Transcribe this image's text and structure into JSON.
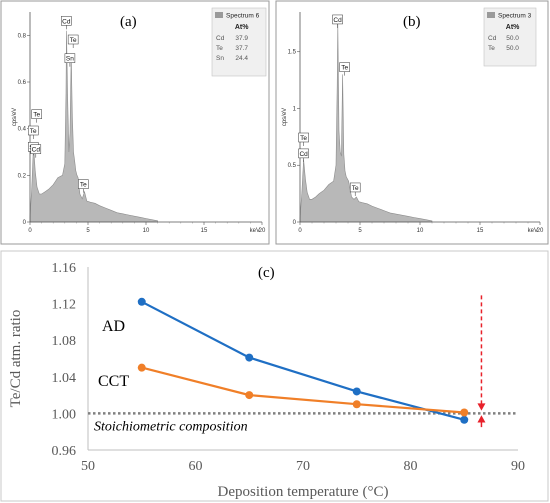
{
  "chart_data": [
    {
      "panel": "(a)",
      "type": "area",
      "ylabel": "cps/eV",
      "xlabel": "keV",
      "x_ticks": [
        "0",
        "5",
        "10",
        "15",
        "20"
      ],
      "y_ticks": [
        "0",
        "0.2",
        "0.4",
        "0.6",
        "0.8"
      ],
      "xlim": [
        0,
        20
      ],
      "ylim": [
        0,
        0.9
      ],
      "x": [
        0,
        0.15,
        0.3,
        0.45,
        0.6,
        0.8,
        1.0,
        1.3,
        1.6,
        2.0,
        2.4,
        2.8,
        3.0,
        3.1,
        3.15,
        3.25,
        3.35,
        3.45,
        3.55,
        3.65,
        3.75,
        3.85,
        3.95,
        4.05,
        4.15,
        4.3,
        4.5,
        4.7,
        4.9,
        5.2,
        5.6,
        6.0,
        6.5,
        7.0,
        7.5,
        8,
        8.5,
        9,
        9.5,
        10,
        10.5,
        11
      ],
      "y": [
        0.02,
        0.14,
        0.33,
        0.22,
        0.15,
        0.12,
        0.12,
        0.13,
        0.14,
        0.16,
        0.19,
        0.2,
        0.25,
        0.55,
        0.82,
        0.52,
        0.3,
        0.38,
        0.72,
        0.46,
        0.3,
        0.26,
        0.22,
        0.2,
        0.19,
        0.12,
        0.1,
        0.13,
        0.09,
        0.085,
        0.08,
        0.07,
        0.06,
        0.05,
        0.04,
        0.035,
        0.03,
        0.025,
        0.02,
        0.015,
        0.01,
        0.005
      ],
      "peak_labels": [
        {
          "text": "Cd",
          "x": 3.13,
          "y": 0.86
        },
        {
          "text": "Te",
          "x": 3.72,
          "y": 0.78
        },
        {
          "text": "Sn",
          "x": 3.44,
          "y": 0.7
        },
        {
          "text": "Te",
          "x": 0.58,
          "y": 0.46
        },
        {
          "text": "Te",
          "x": 0.28,
          "y": 0.39
        },
        {
          "text": "Sn",
          "x": 0.28,
          "y": 0.32
        },
        {
          "text": "Cd",
          "x": 0.5,
          "y": 0.31
        },
        {
          "text": "Te",
          "x": 4.6,
          "y": 0.16
        }
      ],
      "legend": {
        "title": "Spectrum 6",
        "header": "At%",
        "rows": [
          {
            "element": "Cd",
            "value": "37.9"
          },
          {
            "element": "Te",
            "value": "37.7"
          },
          {
            "element": "Sn",
            "value": "24.4"
          }
        ]
      }
    },
    {
      "panel": "(b)",
      "type": "area",
      "ylabel": "cps/eV",
      "xlabel": "keV",
      "x_ticks": [
        "0",
        "5",
        "10",
        "15",
        "20"
      ],
      "y_ticks": [
        "0",
        "0.5",
        "1",
        "1.5"
      ],
      "xlim": [
        0,
        20
      ],
      "ylim": [
        0,
        1.85
      ],
      "x": [
        0,
        0.15,
        0.3,
        0.45,
        0.6,
        0.8,
        1.0,
        1.3,
        1.6,
        2.0,
        2.4,
        2.8,
        3.0,
        3.1,
        3.15,
        3.25,
        3.35,
        3.45,
        3.55,
        3.65,
        3.75,
        3.85,
        3.95,
        4.05,
        4.15,
        4.3,
        4.5,
        4.7,
        4.9,
        5.2,
        5.6,
        6.0,
        6.5,
        7.0,
        7.5,
        8,
        8.5,
        9,
        9.5,
        10,
        10.5,
        11
      ],
      "y": [
        0.03,
        0.25,
        0.55,
        0.38,
        0.26,
        0.2,
        0.2,
        0.22,
        0.25,
        0.28,
        0.33,
        0.36,
        0.5,
        1.2,
        1.75,
        0.8,
        0.62,
        0.58,
        1.3,
        0.6,
        0.45,
        0.4,
        0.38,
        0.36,
        0.3,
        0.22,
        0.2,
        0.22,
        0.18,
        0.17,
        0.16,
        0.14,
        0.12,
        0.1,
        0.08,
        0.07,
        0.06,
        0.05,
        0.04,
        0.03,
        0.02,
        0.01
      ],
      "peak_labels": [
        {
          "text": "Cd",
          "x": 3.13,
          "y": 1.78
        },
        {
          "text": "Te",
          "x": 3.72,
          "y": 1.36
        },
        {
          "text": "Te",
          "x": 0.3,
          "y": 0.74
        },
        {
          "text": "Cd",
          "x": 0.3,
          "y": 0.6
        },
        {
          "text": "Te",
          "x": 4.6,
          "y": 0.3
        }
      ],
      "legend": {
        "title": "Spectrum 3",
        "header": "At%",
        "rows": [
          {
            "element": "Cd",
            "value": "50.0"
          },
          {
            "element": "Te",
            "value": "50.0"
          }
        ]
      }
    },
    {
      "panel": "(c)",
      "type": "line",
      "xlabel": "Deposition temperature (°C)",
      "ylabel": "Te/Cd atm. ratio",
      "xlim": [
        50,
        90
      ],
      "ylim": [
        0.96,
        1.16
      ],
      "x_ticks": [
        "50",
        "60",
        "70",
        "80",
        "90"
      ],
      "y_ticks": [
        "0.96",
        "1.00",
        "1.04",
        "1.08",
        "1.12",
        "1.16"
      ],
      "grid": false,
      "series": [
        {
          "name": "AD",
          "color": "#1f6fc4",
          "x": [
            55,
            65,
            75,
            85
          ],
          "y": [
            1.122,
            1.061,
            1.024,
            0.993
          ]
        },
        {
          "name": "CCT",
          "color": "#f07f28",
          "x": [
            55,
            65,
            75,
            85
          ],
          "y": [
            1.05,
            1.02,
            1.01,
            1.001
          ]
        }
      ],
      "reference_line": {
        "y": 1.0,
        "label": "Stoichiometric composition",
        "color": "#808080"
      },
      "arrows_color": "#e8212a"
    }
  ]
}
